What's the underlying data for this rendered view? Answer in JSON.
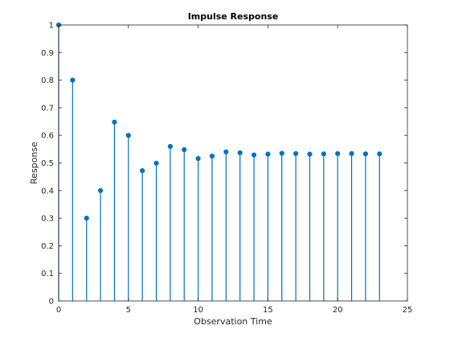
{
  "chart_data": {
    "type": "scatter",
    "style": "stem",
    "title": "Impulse Response",
    "xlabel": "Observation Time",
    "ylabel": "Response",
    "xlim": [
      0,
      25
    ],
    "ylim": [
      0,
      1
    ],
    "xticks": [
      0,
      5,
      10,
      15,
      20,
      25
    ],
    "yticks": [
      0,
      0.1,
      0.2,
      0.3,
      0.4,
      0.5,
      0.6,
      0.7,
      0.8,
      0.9,
      1
    ],
    "grid": false,
    "series": [
      {
        "color": "#0072BD",
        "marker_color": "#0072BD",
        "x": [
          0,
          1,
          2,
          3,
          4,
          5,
          6,
          7,
          8,
          9,
          10,
          11,
          12,
          13,
          14,
          15,
          16,
          17,
          18,
          19,
          20,
          21,
          22,
          23
        ],
        "y": [
          1.0,
          0.8,
          0.3,
          0.4,
          0.648,
          0.6,
          0.472,
          0.499,
          0.56,
          0.548,
          0.516,
          0.525,
          0.54,
          0.537,
          0.529,
          0.532,
          0.535,
          0.534,
          0.532,
          0.533,
          0.534,
          0.534,
          0.533,
          0.533
        ]
      }
    ]
  }
}
